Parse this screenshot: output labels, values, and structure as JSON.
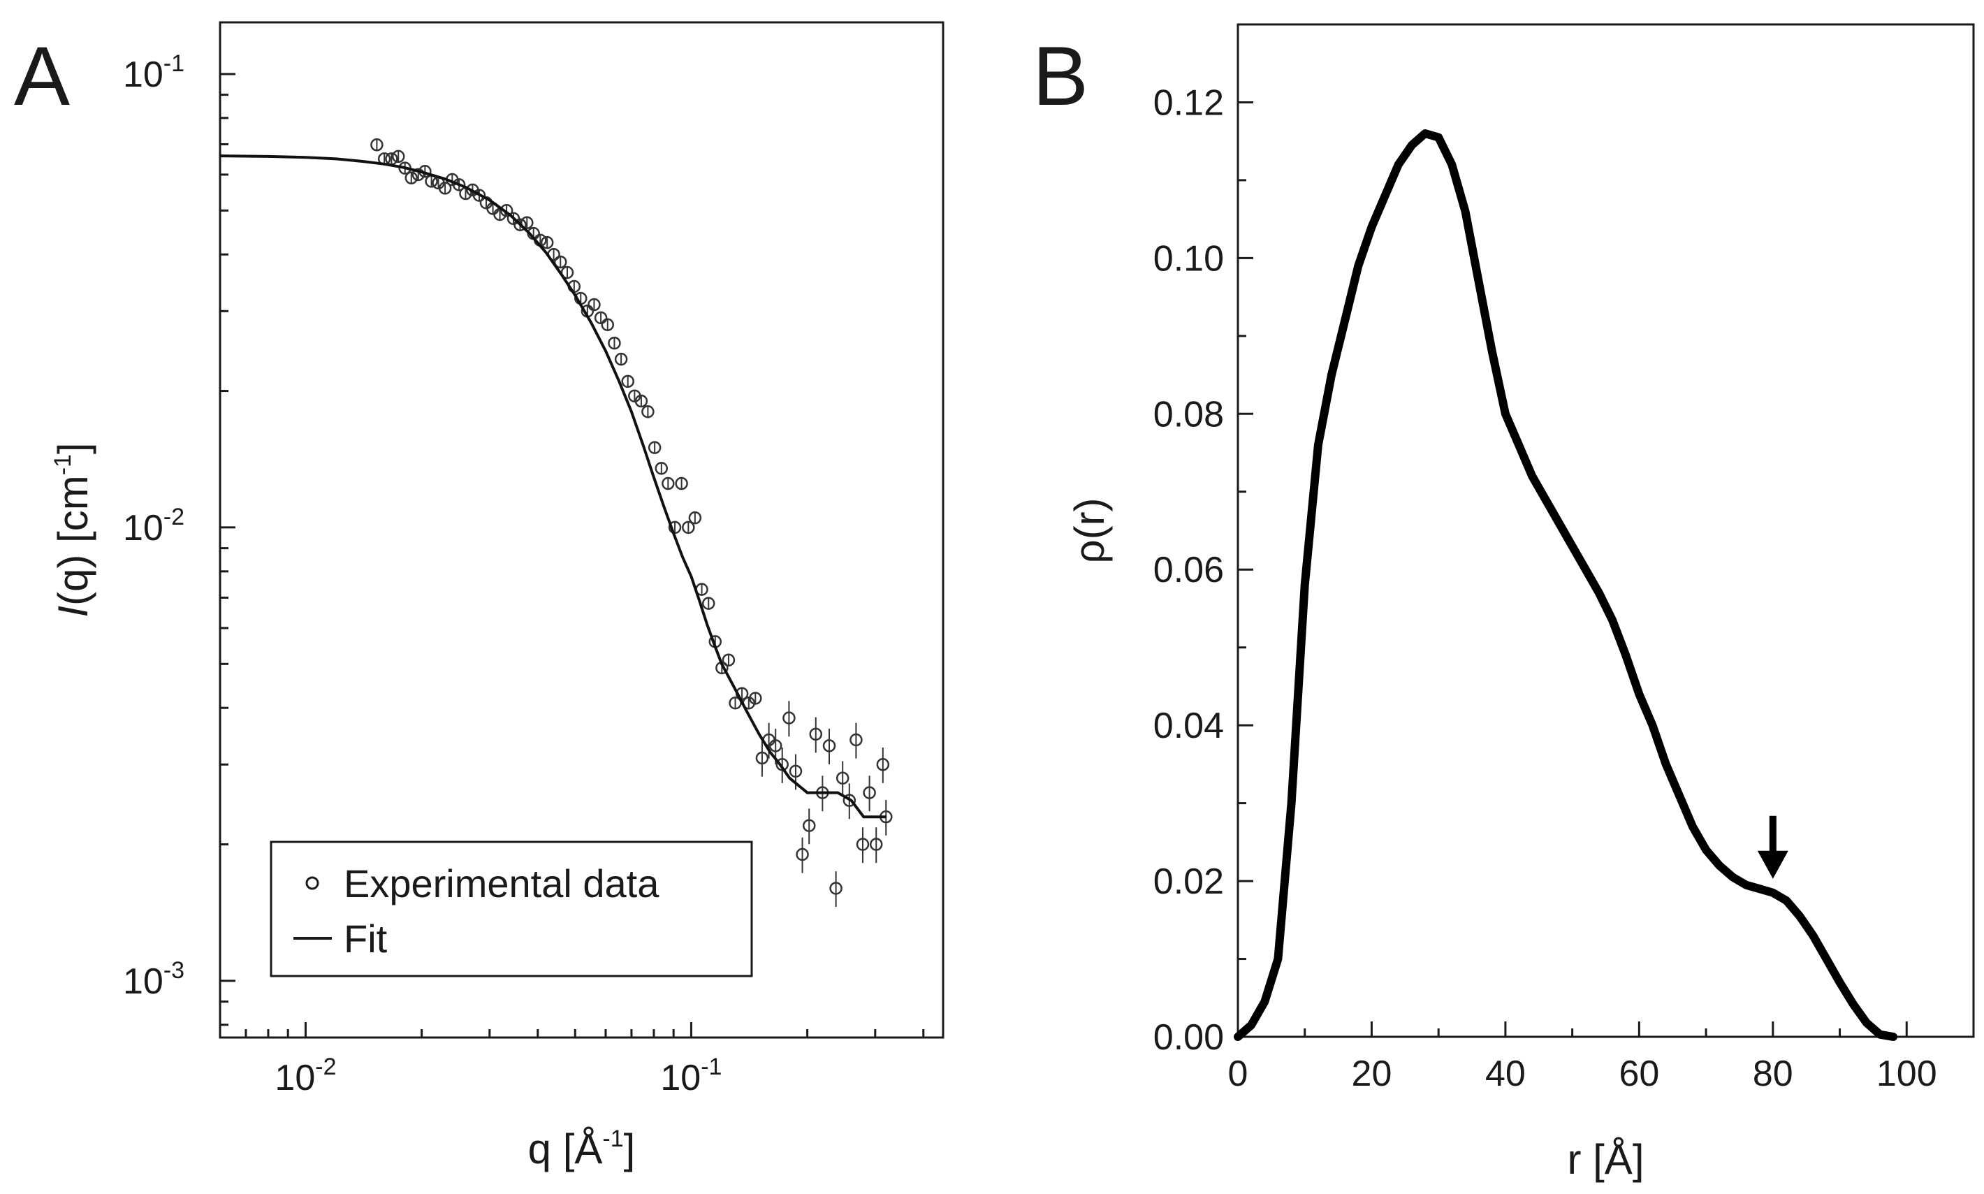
{
  "chart_data": [
    {
      "panel": "A",
      "type": "scatter",
      "xlabel": "q [Å-1]",
      "ylabel": "I(q) [cm-1]",
      "x_scale": "log",
      "y_scale": "log",
      "xlim": [
        0.006,
        0.45
      ],
      "ylim": [
        0.00075,
        0.13
      ],
      "x_ticks": [
        {
          "base": "10",
          "exp": "-2",
          "value": 0.01
        },
        {
          "base": "10",
          "exp": "-1",
          "value": 0.1
        }
      ],
      "y_ticks": [
        {
          "base": "10",
          "exp": "-3",
          "value": 0.001
        },
        {
          "base": "10",
          "exp": "-2",
          "value": 0.01
        },
        {
          "base": "10",
          "exp": "-1",
          "value": 0.1
        }
      ],
      "legend": {
        "position": "bottom-left",
        "entries": [
          "Experimental data",
          "Fit"
        ]
      },
      "series": [
        {
          "name": "Experimental data",
          "marker": "open-circle",
          "points": [
            [
              0.0153,
              0.0698
            ],
            [
              0.016,
              0.065
            ],
            [
              0.0167,
              0.065
            ],
            [
              0.0174,
              0.0658
            ],
            [
              0.0181,
              0.062
            ],
            [
              0.0188,
              0.059
            ],
            [
              0.0196,
              0.06
            ],
            [
              0.0204,
              0.061
            ],
            [
              0.0212,
              0.058
            ],
            [
              0.0221,
              0.0575
            ],
            [
              0.023,
              0.056
            ],
            [
              0.024,
              0.0585
            ],
            [
              0.025,
              0.057
            ],
            [
              0.026,
              0.0545
            ],
            [
              0.0271,
              0.0555
            ],
            [
              0.0282,
              0.054
            ],
            [
              0.0294,
              0.052
            ],
            [
              0.0306,
              0.0505
            ],
            [
              0.0319,
              0.049
            ],
            [
              0.0332,
              0.05
            ],
            [
              0.0346,
              0.048
            ],
            [
              0.036,
              0.0465
            ],
            [
              0.0375,
              0.047
            ],
            [
              0.039,
              0.0445
            ],
            [
              0.0406,
              0.043
            ],
            [
              0.0423,
              0.0425
            ],
            [
              0.044,
              0.04
            ],
            [
              0.0458,
              0.0385
            ],
            [
              0.0477,
              0.0365
            ],
            [
              0.0497,
              0.034
            ],
            [
              0.0517,
              0.032
            ],
            [
              0.0538,
              0.03
            ],
            [
              0.056,
              0.031
            ],
            [
              0.0583,
              0.029
            ],
            [
              0.0607,
              0.028
            ],
            [
              0.0632,
              0.0255
            ],
            [
              0.0658,
              0.0235
            ],
            [
              0.0685,
              0.021
            ],
            [
              0.0713,
              0.0195
            ],
            [
              0.0742,
              0.019
            ],
            [
              0.0772,
              0.018
            ],
            [
              0.0804,
              0.015
            ],
            [
              0.0837,
              0.0135
            ],
            [
              0.0871,
              0.0125
            ],
            [
              0.0907,
              0.01
            ],
            [
              0.0944,
              0.0125
            ],
            [
              0.0983,
              0.01
            ],
            [
              0.1023,
              0.0105
            ],
            [
              0.1065,
              0.0073
            ],
            [
              0.1109,
              0.0068
            ],
            [
              0.1154,
              0.0056
            ],
            [
              0.1201,
              0.0049
            ],
            [
              0.125,
              0.0051
            ],
            [
              0.1301,
              0.0041
            ],
            [
              0.1354,
              0.0043
            ],
            [
              0.141,
              0.0041
            ],
            [
              0.1467,
              0.0042
            ],
            [
              0.1527,
              0.0031
            ],
            [
              0.159,
              0.0034
            ],
            [
              0.1655,
              0.0033
            ],
            [
              0.1722,
              0.003
            ],
            [
              0.1793,
              0.0038
            ],
            [
              0.1866,
              0.0029
            ],
            [
              0.1942,
              0.0019
            ],
            [
              0.2022,
              0.0022
            ],
            [
              0.2104,
              0.0035
            ],
            [
              0.219,
              0.0026
            ],
            [
              0.228,
              0.0033
            ],
            [
              0.2373,
              0.0016
            ],
            [
              0.247,
              0.0028
            ],
            [
              0.2571,
              0.0025
            ],
            [
              0.2676,
              0.0034
            ],
            [
              0.2785,
              0.002
            ],
            [
              0.2899,
              0.0026
            ],
            [
              0.3018,
              0.002
            ],
            [
              0.3141,
              0.003
            ],
            [
              0.32,
              0.0023
            ]
          ]
        },
        {
          "name": "Fit",
          "marker": "line",
          "points": [
            [
              0.006,
              0.066
            ],
            [
              0.008,
              0.0658
            ],
            [
              0.01,
              0.0655
            ],
            [
              0.012,
              0.065
            ],
            [
              0.014,
              0.0642
            ],
            [
              0.016,
              0.0633
            ],
            [
              0.018,
              0.0622
            ],
            [
              0.02,
              0.0608
            ],
            [
              0.023,
              0.0587
            ],
            [
              0.026,
              0.0563
            ],
            [
              0.03,
              0.0527
            ],
            [
              0.034,
              0.0488
            ],
            [
              0.038,
              0.0446
            ],
            [
              0.042,
              0.0404
            ],
            [
              0.046,
              0.0362
            ],
            [
              0.05,
              0.0325
            ],
            [
              0.055,
              0.0283
            ],
            [
              0.06,
              0.0245
            ],
            [
              0.065,
              0.021
            ],
            [
              0.07,
              0.018
            ],
            [
              0.075,
              0.0152
            ],
            [
              0.08,
              0.0129
            ],
            [
              0.085,
              0.0111
            ],
            [
              0.09,
              0.0097
            ],
            [
              0.095,
              0.0086
            ],
            [
              0.1,
              0.0078
            ],
            [
              0.105,
              0.0069
            ],
            [
              0.11,
              0.0061
            ],
            [
              0.115,
              0.0055
            ],
            [
              0.12,
              0.005
            ],
            [
              0.13,
              0.0044
            ],
            [
              0.14,
              0.0039
            ],
            [
              0.15,
              0.0035
            ],
            [
              0.16,
              0.0032
            ],
            [
              0.17,
              0.003
            ],
            [
              0.18,
              0.0028
            ],
            [
              0.2,
              0.0026
            ],
            [
              0.22,
              0.0026
            ],
            [
              0.24,
              0.0026
            ],
            [
              0.26,
              0.0025
            ],
            [
              0.28,
              0.0023
            ],
            [
              0.3,
              0.0023
            ],
            [
              0.32,
              0.0023
            ]
          ]
        }
      ]
    },
    {
      "panel": "B",
      "type": "line",
      "xlabel": "r [Å]",
      "ylabel": "ρ(r)",
      "xlim": [
        0,
        110
      ],
      "ylim": [
        0,
        0.13
      ],
      "x_ticks": [
        "0",
        "20",
        "40",
        "60",
        "80",
        "100"
      ],
      "y_ticks": [
        "0.00",
        "0.02",
        "0.04",
        "0.06",
        "0.08",
        "0.10",
        "0.12"
      ],
      "annotation": {
        "type": "arrow-down",
        "x": 80,
        "y": 0.0185
      },
      "series": [
        {
          "marker": "line",
          "points": [
            [
              0,
              0
            ],
            [
              2,
              0.0015
            ],
            [
              4,
              0.0045
            ],
            [
              6,
              0.01
            ],
            [
              8,
              0.03
            ],
            [
              10,
              0.058
            ],
            [
              12,
              0.076
            ],
            [
              14,
              0.085
            ],
            [
              16,
              0.092
            ],
            [
              18,
              0.099
            ],
            [
              20,
              0.104
            ],
            [
              22,
              0.108
            ],
            [
              24,
              0.112
            ],
            [
              26,
              0.1145
            ],
            [
              28,
              0.116
            ],
            [
              30,
              0.1155
            ],
            [
              32,
              0.112
            ],
            [
              34,
              0.106
            ],
            [
              36,
              0.097
            ],
            [
              38,
              0.088
            ],
            [
              40,
              0.08
            ],
            [
              42,
              0.076
            ],
            [
              44,
              0.072
            ],
            [
              46,
              0.069
            ],
            [
              48,
              0.066
            ],
            [
              50,
              0.063
            ],
            [
              52,
              0.06
            ],
            [
              54,
              0.057
            ],
            [
              56,
              0.0535
            ],
            [
              58,
              0.049
            ],
            [
              60,
              0.044
            ],
            [
              62,
              0.04
            ],
            [
              64,
              0.035
            ],
            [
              66,
              0.031
            ],
            [
              68,
              0.027
            ],
            [
              70,
              0.024
            ],
            [
              72,
              0.022
            ],
            [
              74,
              0.0205
            ],
            [
              76,
              0.0195
            ],
            [
              78,
              0.019
            ],
            [
              80,
              0.0185
            ],
            [
              82,
              0.0175
            ],
            [
              84,
              0.0155
            ],
            [
              86,
              0.013
            ],
            [
              88,
              0.01
            ],
            [
              90,
              0.007
            ],
            [
              92,
              0.0042
            ],
            [
              94,
              0.0018
            ],
            [
              96,
              0.0003
            ],
            [
              98,
              0.0
            ]
          ]
        }
      ]
    }
  ],
  "panels": {
    "a_letter": "A",
    "b_letter": "B"
  }
}
